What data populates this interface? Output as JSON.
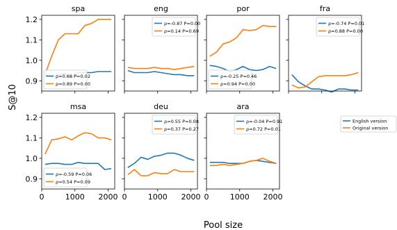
{
  "chart_data": {
    "type": "line",
    "xlabel": "Pool size",
    "ylabel": "S@10",
    "xlim": [
      0,
      2200
    ],
    "ylim": [
      0.85,
      1.22
    ],
    "xticks": [
      0,
      1000,
      2000
    ],
    "yticks": [
      0.9,
      1.0,
      1.1,
      1.2
    ],
    "x": [
      100,
      300,
      500,
      700,
      900,
      1100,
      1300,
      1500,
      1700,
      1900,
      2100
    ],
    "colors": {
      "english": "#1f77b4",
      "original": "#ff7f0e"
    },
    "legend": {
      "english": "English version",
      "original": "Original version"
    },
    "panels": [
      {
        "title": "spa",
        "legend_loc": "lower-left",
        "series": [
          {
            "key": "english",
            "stat": "ρ=0.68 P=0.02",
            "values": [
              0.93,
              0.92,
              0.93,
              0.935,
              0.915,
              0.94,
              0.94,
              0.94,
              0.945,
              0.945,
              0.945
            ]
          },
          {
            "key": "original",
            "stat": "ρ=0.89 P=0.00",
            "values": [
              0.93,
              1.02,
              1.1,
              1.13,
              1.13,
              1.13,
              1.17,
              1.18,
              1.2,
              1.2,
              1.2
            ]
          }
        ]
      },
      {
        "title": "eng",
        "legend_loc": "upper-right",
        "series": [
          {
            "key": "english",
            "stat": "ρ=-0.87 P=0.00",
            "values": [
              0.95,
              0.94,
              0.94,
              0.94,
              0.945,
              0.94,
              0.935,
              0.93,
              0.93,
              0.925,
              0.925
            ]
          },
          {
            "key": "original",
            "stat": "ρ=0.14 P=0.69",
            "values": [
              0.965,
              0.96,
              0.96,
              0.96,
              0.965,
              0.96,
              0.96,
              0.955,
              0.96,
              0.965,
              0.97
            ]
          }
        ]
      },
      {
        "title": "por",
        "legend_loc": "lower-left",
        "series": [
          {
            "key": "english",
            "stat": "ρ=-0.25 P=0.46",
            "values": [
              0.975,
              0.97,
              0.96,
              0.945,
              0.955,
              0.97,
              0.955,
              0.95,
              0.955,
              0.97,
              0.96
            ]
          },
          {
            "key": "original",
            "stat": "ρ=0.94 P=0.00",
            "values": [
              1.02,
              1.04,
              1.08,
              1.09,
              1.11,
              1.15,
              1.145,
              1.15,
              1.17,
              1.165,
              1.165
            ]
          }
        ]
      },
      {
        "title": "fra",
        "legend_loc": "upper-right",
        "series": [
          {
            "key": "english",
            "stat": "ρ=-0.74 P=0.01",
            "values": [
              0.93,
              0.895,
              0.875,
              0.86,
              0.86,
              0.855,
              0.845,
              0.86,
              0.86,
              0.855,
              0.855
            ]
          },
          {
            "key": "original",
            "stat": "ρ=0.88 P=0.00",
            "values": [
              0.88,
              0.865,
              0.87,
              0.895,
              0.92,
              0.925,
              0.925,
              0.925,
              0.925,
              0.93,
              0.94
            ]
          }
        ]
      },
      {
        "title": "msa",
        "legend_loc": "lower-left",
        "series": [
          {
            "key": "english",
            "stat": "ρ=-0.59 P=0.06",
            "values": [
              0.97,
              0.975,
              0.975,
              0.97,
              0.97,
              0.98,
              0.975,
              0.975,
              0.975,
              0.945,
              0.95
            ]
          },
          {
            "key": "original",
            "stat": "ρ=0.54 P=0.09",
            "values": [
              1.02,
              1.09,
              1.095,
              1.105,
              1.09,
              1.11,
              1.125,
              1.12,
              1.1,
              1.1,
              1.09
            ]
          }
        ]
      },
      {
        "title": "deu",
        "legend_loc": "upper-right",
        "series": [
          {
            "key": "english",
            "stat": "ρ=0.55 P=0.08",
            "values": [
              0.955,
              0.975,
              1.005,
              0.995,
              1.01,
              1.015,
              1.025,
              1.025,
              1.015,
              1.0,
              0.99
            ]
          },
          {
            "key": "original",
            "stat": "ρ=0.37 P=0.27",
            "values": [
              0.92,
              0.945,
              0.915,
              0.915,
              0.93,
              0.925,
              0.925,
              0.945,
              0.935,
              0.935,
              0.935
            ]
          }
        ]
      },
      {
        "title": "ara",
        "legend_loc": "upper-right",
        "series": [
          {
            "key": "english",
            "stat": "ρ=-0.04 P=0.91",
            "values": [
              0.98,
              0.98,
              0.98,
              0.975,
              0.975,
              0.975,
              0.985,
              0.99,
              0.985,
              0.98,
              0.975
            ]
          },
          {
            "key": "original",
            "stat": "ρ=0.72 P=0.01",
            "values": [
              0.965,
              0.965,
              0.97,
              0.965,
              0.97,
              0.975,
              0.985,
              0.99,
              1.0,
              0.985,
              0.975
            ]
          }
        ]
      }
    ]
  }
}
